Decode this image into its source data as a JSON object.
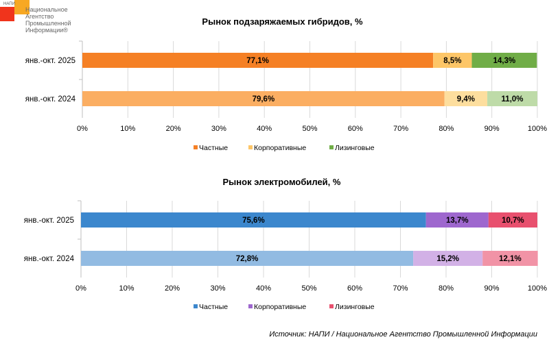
{
  "logo": {
    "abbr": "НАПИ",
    "text": [
      "Национальное",
      "Агентство",
      "Промышленной",
      "Информации®"
    ]
  },
  "source": "Источник: НАПИ / Национальное Агентство Промышленной Информации",
  "chart_data": [
    {
      "type": "bar",
      "orientation": "horizontal",
      "stacked": true,
      "title": "Рынок подзаряжаемых гибридов, %",
      "categories": [
        "янв.-окт. 2025",
        "янв.-окт. 2024"
      ],
      "series": [
        {
          "name": "Частные",
          "values": [
            77.1,
            79.6
          ],
          "labels": [
            "77,1%",
            "79,6%"
          ],
          "colors": [
            "#F58025",
            "#FBAE62"
          ]
        },
        {
          "name": "Корпоративные",
          "values": [
            8.5,
            9.4
          ],
          "labels": [
            "8,5%",
            "9,4%"
          ],
          "colors": [
            "#FDC668",
            "#FDDE9E"
          ]
        },
        {
          "name": "Лизинговые",
          "values": [
            14.3,
            11.0
          ],
          "labels": [
            "14,3%",
            "11,0%"
          ],
          "colors": [
            "#70AD47",
            "#BEDBA8"
          ]
        }
      ],
      "xticks": [
        "0%",
        "10%",
        "20%",
        "30%",
        "40%",
        "50%",
        "60%",
        "70%",
        "80%",
        "90%",
        "100%"
      ],
      "xlim": [
        0,
        100
      ],
      "grid": true,
      "legend": "bottom"
    },
    {
      "type": "bar",
      "orientation": "horizontal",
      "stacked": true,
      "title": "Рынок электромобилей, %",
      "categories": [
        "янв.-окт. 2025",
        "янв.-окт. 2024"
      ],
      "series": [
        {
          "name": "Частные",
          "values": [
            75.6,
            72.8
          ],
          "labels": [
            "75,6%",
            "72,8%"
          ],
          "colors": [
            "#3C87CD",
            "#92BBE2"
          ]
        },
        {
          "name": "Корпоративные",
          "values": [
            13.7,
            15.2
          ],
          "labels": [
            "13,7%",
            "15,2%"
          ],
          "colors": [
            "#9E67CE",
            "#D2B1E6"
          ]
        },
        {
          "name": "Лизинговые",
          "values": [
            10.7,
            12.1
          ],
          "labels": [
            "10,7%",
            "12,1%"
          ],
          "colors": [
            "#E8506E",
            "#F193A6"
          ]
        }
      ],
      "xticks": [
        "0%",
        "10%",
        "20%",
        "30%",
        "40%",
        "50%",
        "60%",
        "70%",
        "80%",
        "90%",
        "100%"
      ],
      "xlim": [
        0,
        100
      ],
      "grid": true,
      "legend": "bottom"
    }
  ]
}
